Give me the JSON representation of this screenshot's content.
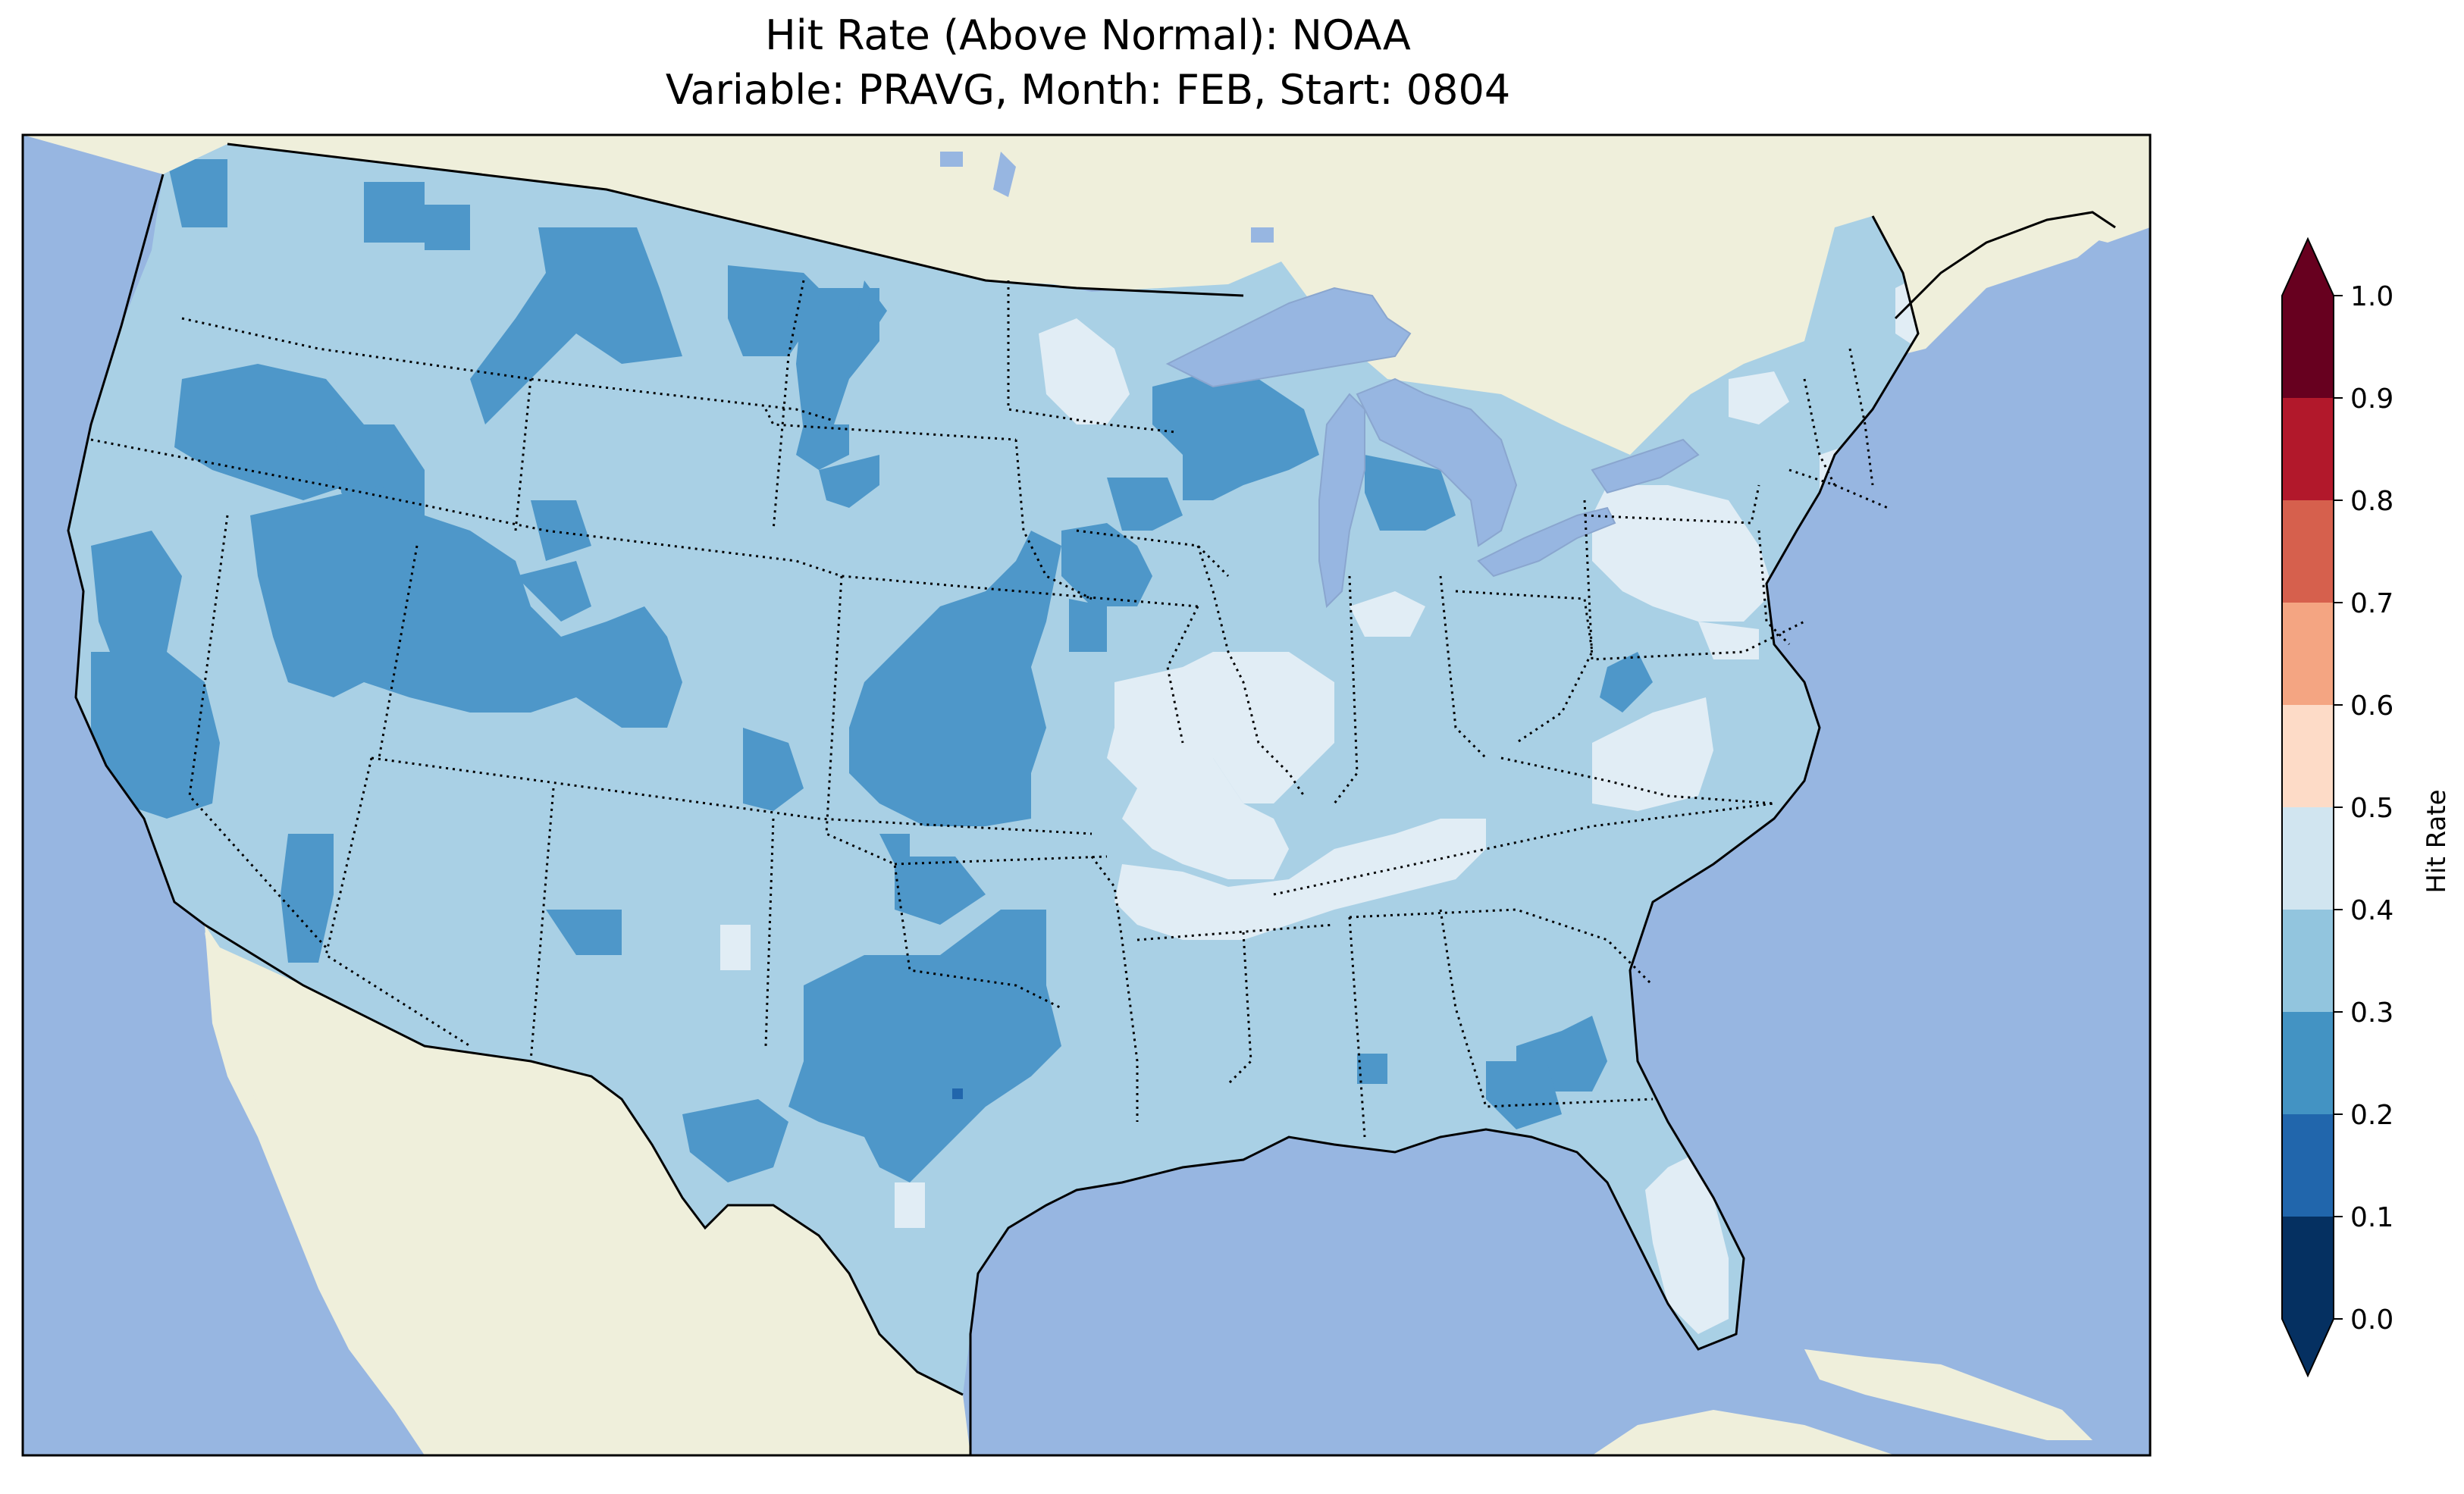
{
  "title": {
    "line1": "Hit Rate (Above Normal): NOAA",
    "line2": "Variable: PRAVG, Month: FEB, Start: 0804"
  },
  "colors": {
    "ocean": "#97b6e1",
    "land": "#efefdb",
    "lakes": "#97b6e1"
  },
  "colorbar": {
    "label": "Hit Rate",
    "ticks": [
      "0.0",
      "0.1",
      "0.2",
      "0.3",
      "0.4",
      "0.5",
      "0.6",
      "0.7",
      "0.8",
      "0.9",
      "1.0"
    ],
    "bins": [
      {
        "range": [
          0.0,
          0.1
        ],
        "color": "#053061"
      },
      {
        "range": [
          0.1,
          0.2
        ],
        "color": "#2166ac"
      },
      {
        "range": [
          0.2,
          0.3
        ],
        "color": "#4393c3"
      },
      {
        "range": [
          0.3,
          0.4
        ],
        "color": "#92c5de"
      },
      {
        "range": [
          0.4,
          0.5
        ],
        "color": "#d1e5f0"
      },
      {
        "range": [
          0.5,
          0.6
        ],
        "color": "#fddbc7"
      },
      {
        "range": [
          0.6,
          0.7
        ],
        "color": "#f4a582"
      },
      {
        "range": [
          0.7,
          0.8
        ],
        "color": "#d6604d"
      },
      {
        "range": [
          0.8,
          0.9
        ],
        "color": "#b2182b"
      },
      {
        "range": [
          0.9,
          1.0
        ],
        "color": "#67001f"
      }
    ],
    "extend": "both"
  },
  "map_regions": [
    {
      "name": "conus-base",
      "hit_rate_bin": "0.3-0.4",
      "color": "#a9d0e5"
    },
    {
      "name": "pacific-northwest",
      "hit_rate_bin": "0.2-0.3",
      "color": "#4e97c9"
    },
    {
      "name": "great-basin",
      "hit_rate_bin": "0.2-0.3",
      "color": "#4e97c9"
    },
    {
      "name": "california-coast",
      "hit_rate_bin": "0.2-0.3",
      "color": "#4e97c9"
    },
    {
      "name": "montana",
      "hit_rate_bin": "0.2-0.3",
      "color": "#4e97c9"
    },
    {
      "name": "kansas-oklahoma",
      "hit_rate_bin": "0.2-0.3",
      "color": "#4e97c9"
    },
    {
      "name": "texas",
      "hit_rate_bin": "0.2-0.3",
      "color": "#4e97c9"
    },
    {
      "name": "wisconsin",
      "hit_rate_bin": "0.2-0.3",
      "color": "#4e97c9"
    },
    {
      "name": "georgia",
      "hit_rate_bin": "0.2-0.3",
      "color": "#4e97c9"
    },
    {
      "name": "minnesota",
      "hit_rate_bin": "0.4-0.5",
      "color": "#e1edf5"
    },
    {
      "name": "illinois-missouri",
      "hit_rate_bin": "0.4-0.5",
      "color": "#e1edf5"
    },
    {
      "name": "tennessee",
      "hit_rate_bin": "0.4-0.5",
      "color": "#e1edf5"
    },
    {
      "name": "pennsylvania-ny",
      "hit_rate_bin": "0.4-0.5",
      "color": "#e1edf5"
    },
    {
      "name": "florida",
      "hit_rate_bin": "0.4-0.5",
      "color": "#e1edf5"
    },
    {
      "name": "maine",
      "hit_rate_bin": "0.4-0.5",
      "color": "#e1edf5"
    },
    {
      "name": "west-texas",
      "hit_rate_bin": "0.1-0.2",
      "color": "#2166ac"
    }
  ]
}
